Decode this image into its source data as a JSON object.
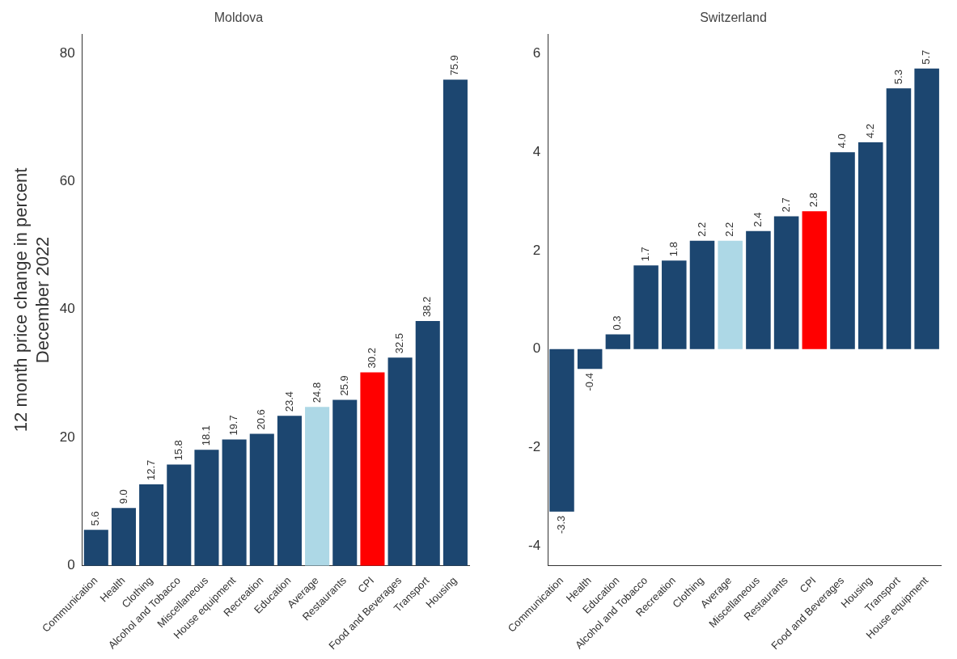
{
  "chart_data": [
    {
      "type": "bar",
      "title": "Moldova",
      "ylabel": "12 month price change in percent\nDecember 2022",
      "categories": [
        "Communication",
        "Health",
        "Clothing",
        "Alcohol and Tobacco",
        "Miscellaneous",
        "House equipment",
        "Recreation",
        "Education",
        "Average",
        "Restaurants",
        "CPI",
        "Food and Beverages",
        "Transport",
        "Housing"
      ],
      "values": [
        5.6,
        9.0,
        12.7,
        15.8,
        18.1,
        19.7,
        20.6,
        23.4,
        24.8,
        25.9,
        30.2,
        32.5,
        38.2,
        75.9
      ],
      "colors": [
        "#1c4670",
        "#1c4670",
        "#1c4670",
        "#1c4670",
        "#1c4670",
        "#1c4670",
        "#1c4670",
        "#1c4670",
        "#add8e6",
        "#1c4670",
        "#ff0000",
        "#1c4670",
        "#1c4670",
        "#1c4670"
      ],
      "value_labels": [
        "5.6",
        "9.0",
        "12.7",
        "15.8",
        "18.1",
        "19.7",
        "20.6",
        "23.4",
        "24.8",
        "25.9",
        "30.2",
        "32.5",
        "38.2",
        "75.9"
      ],
      "ylim": [
        0,
        83
      ],
      "yticks": [
        0,
        20,
        40,
        60,
        80
      ],
      "grid": false,
      "legend": false
    },
    {
      "type": "bar",
      "title": "Switzerland",
      "categories": [
        "Communication",
        "Health",
        "Education",
        "Alcohol and Tobacco",
        "Recreation",
        "Clothing",
        "Average",
        "Miscellaneous",
        "Restaurants",
        "CPI",
        "Food and Beverages",
        "Housing",
        "Transport",
        "House equipment"
      ],
      "values": [
        -3.3,
        -0.4,
        0.3,
        1.7,
        1.8,
        2.2,
        2.2,
        2.4,
        2.7,
        2.8,
        4.0,
        4.2,
        5.3,
        5.7
      ],
      "colors": [
        "#1c4670",
        "#1c4670",
        "#1c4670",
        "#1c4670",
        "#1c4670",
        "#1c4670",
        "#add8e6",
        "#1c4670",
        "#1c4670",
        "#ff0000",
        "#1c4670",
        "#1c4670",
        "#1c4670",
        "#1c4670"
      ],
      "value_labels": [
        "-3.3",
        "-0.4",
        "0.3",
        "1.7",
        "1.8",
        "2.2",
        "2.2",
        "2.4",
        "2.7",
        "2.8",
        "4.0",
        "4.2",
        "5.3",
        "5.7"
      ],
      "ylim": [
        -4.4,
        6.4
      ],
      "yticks": [
        -4,
        -2,
        0,
        2,
        4,
        6
      ],
      "grid": false,
      "legend": false
    }
  ]
}
